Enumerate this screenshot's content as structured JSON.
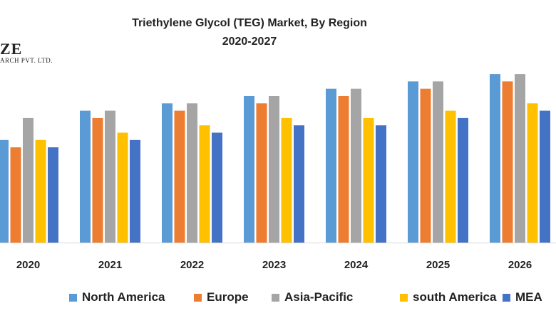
{
  "header": {
    "title_line1": "Triethylene Glycol (TEG) Market, By Region",
    "title_line2": "2020-2027"
  },
  "watermark": {
    "line1": "ZE",
    "line2": "ARCH PVT. LTD."
  },
  "chart_data": {
    "type": "bar",
    "title": "Triethylene Glycol (TEG) Market, By Region 2020-2027",
    "categories": [
      "2020",
      "2021",
      "2022",
      "2023",
      "2024",
      "2025",
      "2026"
    ],
    "series": [
      {
        "name": "North America",
        "color": "#5b9bd5",
        "values": [
          7.0,
          9.0,
          9.5,
          10.0,
          10.5,
          11.0,
          11.5
        ]
      },
      {
        "name": "Europe",
        "color": "#ed7d31",
        "values": [
          6.5,
          8.5,
          9.0,
          9.5,
          10.0,
          10.5,
          11.0
        ]
      },
      {
        "name": "Asia-Pacific",
        "color": "#a5a5a5",
        "values": [
          8.5,
          9.0,
          9.5,
          10.0,
          10.5,
          11.0,
          11.5
        ]
      },
      {
        "name": "south America",
        "color": "#ffc000",
        "values": [
          7.0,
          7.5,
          8.0,
          8.5,
          8.5,
          9.0,
          9.5
        ]
      },
      {
        "name": "MEA",
        "color": "#4472c4",
        "values": [
          6.5,
          7.0,
          7.5,
          8.0,
          8.0,
          8.5,
          9.0
        ]
      }
    ],
    "ylim": [
      0,
      12
    ],
    "legend_position": "bottom",
    "grid": false
  }
}
